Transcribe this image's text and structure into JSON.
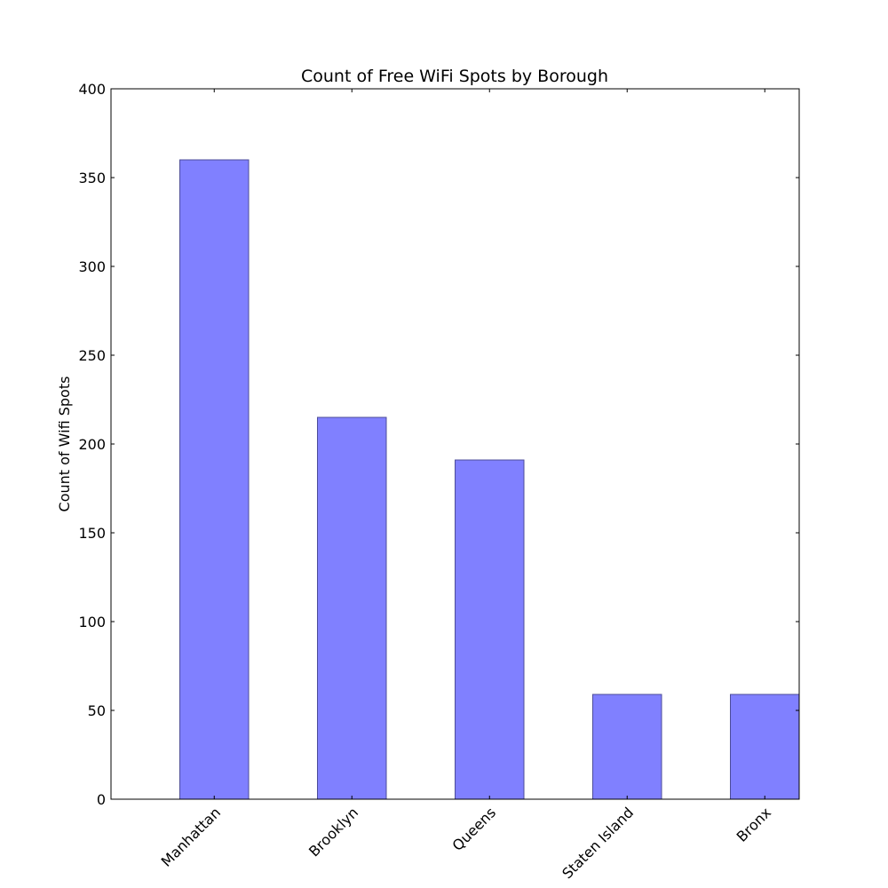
{
  "chart_data": {
    "type": "bar",
    "title": "Count of Free WiFi Spots by Borough",
    "xlabel": "",
    "ylabel": "Count of Wifi Spots",
    "categories": [
      "Manhattan",
      "Brooklyn",
      "Queens",
      "Staten Island",
      "Bronx"
    ],
    "values": [
      360,
      215,
      191,
      59,
      59
    ],
    "ylim": [
      0,
      400
    ],
    "yticks": [
      0,
      50,
      100,
      150,
      200,
      250,
      300,
      350,
      400
    ],
    "grid": false,
    "bar_color": "#8080ff",
    "bar_edge_color": "#4d4d99"
  }
}
